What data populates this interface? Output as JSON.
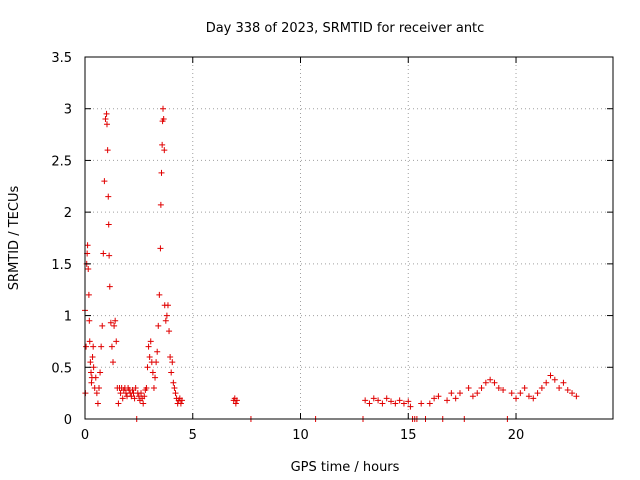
{
  "chart_data": {
    "type": "scatter",
    "title": "Day 338 of 2023, SRMTID for receiver antc",
    "xlabel": "GPS time / hours",
    "ylabel": "SRMTID / TECUs",
    "xlim": [
      0,
      24.5
    ],
    "ylim": [
      0,
      3.5
    ],
    "x_ticks": [
      0,
      5,
      10,
      15,
      20
    ],
    "x_tick_labels": [
      "0",
      "5",
      "10",
      "15",
      "20"
    ],
    "y_ticks": [
      0,
      0.5,
      1,
      1.5,
      2,
      2.5,
      3,
      3.5
    ],
    "y_tick_labels": [
      "0",
      "0.5",
      "1",
      "1.5",
      "2",
      "2.5",
      "3",
      "3.5"
    ],
    "grid": true,
    "marker": "+",
    "color": "#e00000",
    "series": [
      {
        "name": "SRMTID",
        "x": [
          0.0,
          0.02,
          0.05,
          0.08,
          0.1,
          0.12,
          0.15,
          0.18,
          0.2,
          0.22,
          0.25,
          0.28,
          0.3,
          0.32,
          0.35,
          0.38,
          0.4,
          0.45,
          0.5,
          0.55,
          0.6,
          0.65,
          0.7,
          0.75,
          0.8,
          0.85,
          0.9,
          0.95,
          1.0,
          1.02,
          1.05,
          1.08,
          1.1,
          1.12,
          1.15,
          1.2,
          1.25,
          1.3,
          1.35,
          1.4,
          1.45,
          1.5,
          1.55,
          1.6,
          1.65,
          1.7,
          1.75,
          1.8,
          1.85,
          1.9,
          1.95,
          2.0,
          2.05,
          2.1,
          2.15,
          2.2,
          2.25,
          2.3,
          2.35,
          2.4,
          2.45,
          2.5,
          2.55,
          2.6,
          2.65,
          2.7,
          2.75,
          2.8,
          2.85,
          2.9,
          2.95,
          3.0,
          3.05,
          3.1,
          3.15,
          3.2,
          3.25,
          3.3,
          3.35,
          3.4,
          3.45,
          3.5,
          3.52,
          3.55,
          3.58,
          3.6,
          3.62,
          3.65,
          3.68,
          3.7,
          3.75,
          3.8,
          3.85,
          3.9,
          3.95,
          4.0,
          4.05,
          4.1,
          4.15,
          4.2,
          4.25,
          4.3,
          4.35,
          4.4,
          4.45,
          4.5,
          6.9,
          6.95,
          7.0,
          7.05,
          7.7,
          10.7,
          12.9,
          13.0,
          13.2,
          13.4,
          13.6,
          13.8,
          14.0,
          14.2,
          14.4,
          14.6,
          14.8,
          15.0,
          15.1,
          15.2,
          15.3,
          15.4,
          15.6,
          15.8,
          16.0,
          16.2,
          16.4,
          16.6,
          16.8,
          17.0,
          17.2,
          17.4,
          17.6,
          17.8,
          18.0,
          18.2,
          18.4,
          18.6,
          18.8,
          19.0,
          19.2,
          19.4,
          19.6,
          19.8,
          20.0,
          20.2,
          20.4,
          20.6,
          20.8,
          21.0,
          21.2,
          21.4,
          21.6,
          21.8,
          22.0,
          22.2,
          22.4,
          22.6,
          22.8
        ],
        "y": [
          1.05,
          0.25,
          0.7,
          1.5,
          1.6,
          1.68,
          1.45,
          1.2,
          0.95,
          0.75,
          0.55,
          0.45,
          0.35,
          0.4,
          0.6,
          0.7,
          0.5,
          0.3,
          0.4,
          0.25,
          0.15,
          0.3,
          0.45,
          0.7,
          0.9,
          1.6,
          2.3,
          2.9,
          2.95,
          2.85,
          2.6,
          2.15,
          1.88,
          1.58,
          1.28,
          0.93,
          0.7,
          0.55,
          0.9,
          0.95,
          0.75,
          0.3,
          0.15,
          0.3,
          0.25,
          0.3,
          0.2,
          0.28,
          0.3,
          0.25,
          0.22,
          0.3,
          0.28,
          0.25,
          0.22,
          0.28,
          0.25,
          0.2,
          0.3,
          0.0,
          0.25,
          0.22,
          0.18,
          0.25,
          0.2,
          0.15,
          0.22,
          0.28,
          0.3,
          0.5,
          0.7,
          0.6,
          0.75,
          0.55,
          0.45,
          0.3,
          0.4,
          0.55,
          0.65,
          0.9,
          1.2,
          1.65,
          2.07,
          2.38,
          2.65,
          2.88,
          3.0,
          2.9,
          2.6,
          1.1,
          0.95,
          1.0,
          1.1,
          0.85,
          0.6,
          0.45,
          0.55,
          0.35,
          0.3,
          0.25,
          0.2,
          0.15,
          0.18,
          0.2,
          0.15,
          0.18,
          0.18,
          0.2,
          0.15,
          0.18,
          0.0,
          0.0,
          0.0,
          0.18,
          0.15,
          0.2,
          0.18,
          0.15,
          0.2,
          0.17,
          0.15,
          0.18,
          0.15,
          0.17,
          0.12,
          0.0,
          0.0,
          0.0,
          0.15,
          0.0,
          0.15,
          0.2,
          0.22,
          0.0,
          0.18,
          0.25,
          0.2,
          0.25,
          0.0,
          0.3,
          0.22,
          0.25,
          0.3,
          0.35,
          0.38,
          0.35,
          0.3,
          0.28,
          0.0,
          0.25,
          0.2,
          0.25,
          0.3,
          0.22,
          0.2,
          0.25,
          0.3,
          0.35,
          0.42,
          0.38,
          0.3,
          0.35,
          0.28,
          0.25,
          0.22
        ]
      }
    ]
  }
}
